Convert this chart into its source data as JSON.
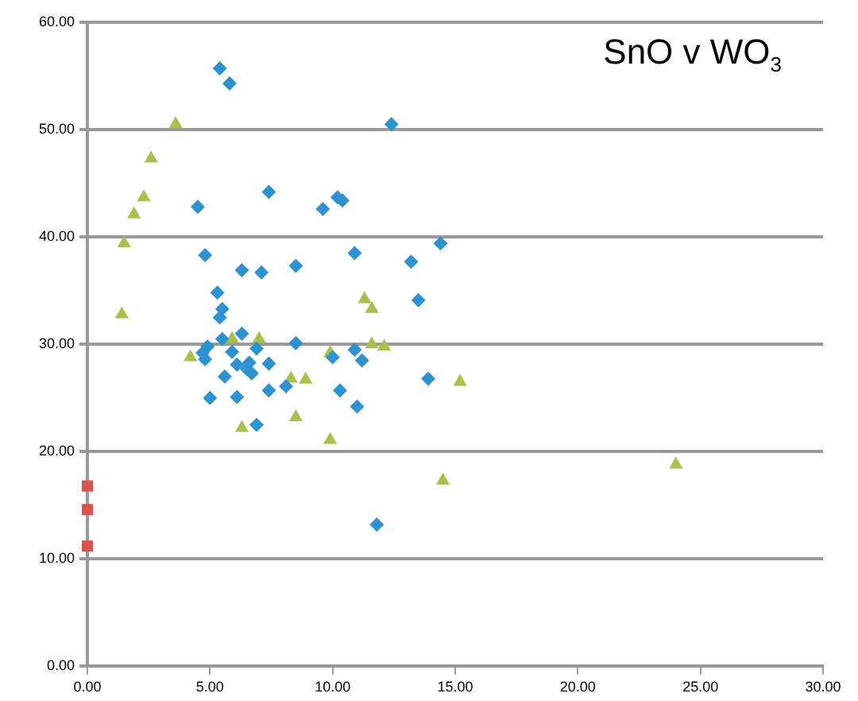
{
  "chart_data": {
    "type": "scatter",
    "title": "SnO v WO$_{3}$",
    "xlim": [
      0,
      30
    ],
    "xticks": [
      {
        "value": 0,
        "label": "0.00"
      },
      {
        "value": 5,
        "label": "5.00"
      },
      {
        "value": 10,
        "label": "10.00"
      },
      {
        "value": 15,
        "label": "15.00"
      },
      {
        "value": 20,
        "label": "20.00"
      },
      {
        "value": 25,
        "label": "25.00"
      },
      {
        "value": 30,
        "label": "30.00"
      }
    ],
    "ylim": [
      0,
      60
    ],
    "yticks": [
      {
        "value": 0,
        "label": "0.00"
      },
      {
        "value": 10,
        "label": "10.00"
      },
      {
        "value": 20,
        "label": "20.00"
      },
      {
        "value": 30,
        "label": "30.00"
      },
      {
        "value": 40,
        "label": "40.00"
      },
      {
        "value": 50,
        "label": "50.00"
      },
      {
        "value": 60,
        "label": "60.00"
      }
    ],
    "grid": "y",
    "legend": false,
    "series": [
      {
        "color": "#2e92cf",
        "marker": "diamond",
        "x": [
          5.4,
          5.8,
          12.4,
          4.5,
          7.4,
          9.6,
          10.2,
          10.4,
          4.8,
          6.3,
          7.1,
          8.5,
          10.9,
          13.2,
          14.4,
          5.3,
          5.5,
          5.4,
          13.5,
          5.5,
          6.3,
          4.9,
          4.7,
          4.8,
          5.9,
          6.1,
          6.6,
          6.9,
          6.5,
          6.7,
          7.4,
          8.5,
          5.6,
          5.0,
          6.1,
          7.4,
          8.1,
          6.9,
          10.0,
          10.3,
          10.9,
          11.2,
          11.0,
          13.9,
          11.8
        ],
        "values": [
          55.7,
          54.3,
          50.5,
          42.8,
          44.2,
          42.6,
          43.7,
          43.4,
          38.3,
          36.9,
          36.7,
          37.3,
          38.5,
          37.7,
          39.4,
          34.8,
          33.3,
          32.5,
          34.1,
          30.5,
          31.0,
          29.8,
          29.2,
          28.6,
          29.3,
          28.1,
          28.3,
          29.6,
          27.7,
          27.3,
          28.2,
          30.1,
          27.0,
          25.0,
          25.1,
          25.7,
          26.1,
          22.5,
          28.8,
          25.7,
          29.5,
          28.5,
          24.2,
          26.8,
          13.2
        ]
      },
      {
        "color": "#a9c14c",
        "marker": "triangle",
        "x": [
          3.6,
          2.6,
          2.3,
          1.9,
          1.5,
          1.4,
          4.2,
          5.9,
          7.0,
          6.3,
          8.3,
          8.5,
          8.9,
          9.9,
          9.9,
          11.3,
          11.6,
          11.6,
          12.1,
          14.5,
          15.2,
          24.0
        ],
        "values": [
          50.5,
          47.3,
          43.7,
          42.1,
          39.4,
          32.8,
          28.8,
          30.5,
          30.5,
          22.2,
          26.8,
          23.2,
          26.7,
          29.2,
          21.1,
          34.2,
          33.3,
          30.0,
          29.8,
          17.3,
          26.5,
          18.8
        ]
      },
      {
        "color": "#d9534f",
        "marker": "square",
        "x": [
          0,
          0,
          0
        ],
        "values": [
          16.8,
          14.6,
          11.2
        ]
      }
    ]
  }
}
